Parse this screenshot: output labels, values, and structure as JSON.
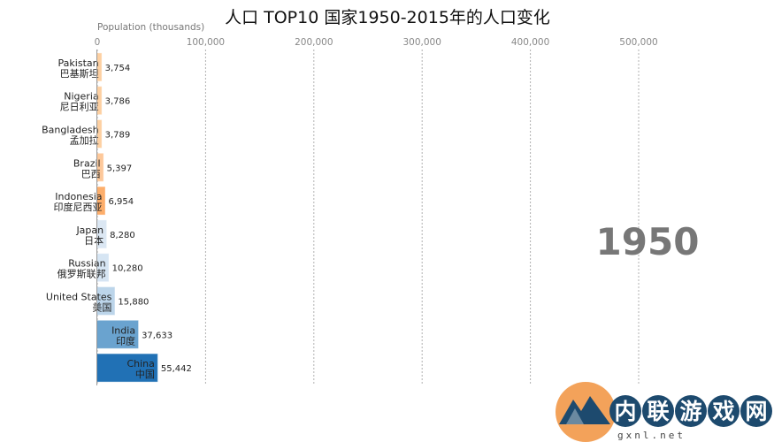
{
  "chart_data": {
    "type": "bar",
    "orientation": "horizontal",
    "title": "人口 TOP10 国家1950-2015年的人口变化",
    "xlabel": "Population (thousands)",
    "year": "1950",
    "xlim": [
      0,
      560000
    ],
    "xticks": [
      0,
      100000,
      200000,
      300000,
      400000,
      500000
    ],
    "xtick_labels": [
      "0",
      "100,000",
      "200,000",
      "300,000",
      "400,000",
      "500,000"
    ],
    "grid": true,
    "bars": [
      {
        "name": "Pakistan",
        "name_zh": "巴基斯坦",
        "value": 3754,
        "label": "3,754",
        "color": "#fdd0a2"
      },
      {
        "name": "Nigeria",
        "name_zh": "尼日利亚",
        "value": 3786,
        "label": "3,786",
        "color": "#fdd0a2"
      },
      {
        "name": "Bangladesh",
        "name_zh": "孟加拉",
        "value": 3789,
        "label": "3,789",
        "color": "#fdd0a2"
      },
      {
        "name": "Brazil",
        "name_zh": "巴西",
        "value": 5397,
        "label": "5,397",
        "color": "#fdc89a"
      },
      {
        "name": "Indonesia",
        "name_zh": "印度尼西亚",
        "value": 6954,
        "label": "6,954",
        "color": "#fdae6b"
      },
      {
        "name": "Japan",
        "name_zh": "日本",
        "value": 8280,
        "label": "8,280",
        "color": "#dbe7f3"
      },
      {
        "name": "Russian",
        "name_zh": "俄罗斯联邦",
        "value": 10280,
        "label": "10,280",
        "color": "#d6e5f3"
      },
      {
        "name": "United States",
        "name_zh": "美国",
        "value": 15880,
        "label": "15,880",
        "color": "#bcd5ea"
      },
      {
        "name": "India",
        "name_zh": "印度",
        "value": 37633,
        "label": "37,633",
        "color": "#6aa3cf"
      },
      {
        "name": "China",
        "name_zh": "中国",
        "value": 55442,
        "label": "55,442",
        "color": "#2171b5"
      }
    ]
  },
  "watermark": {
    "text": "内联游戏网",
    "url": "gxnl.net"
  }
}
